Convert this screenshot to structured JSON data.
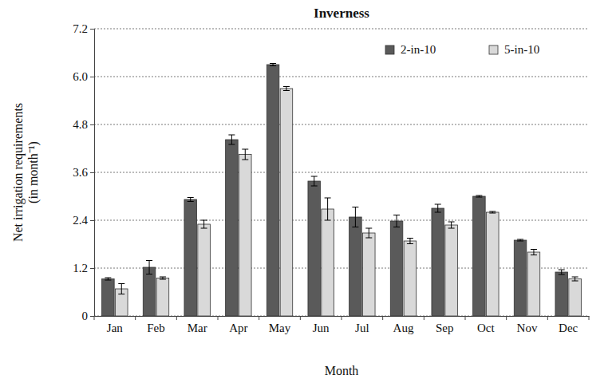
{
  "chart_data": {
    "type": "bar",
    "title": "Inverness",
    "xlabel": "Month",
    "ylabel": "Net irrigation requirements (in month⁻¹)",
    "categories": [
      "Jan",
      "Feb",
      "Mar",
      "Apr",
      "May",
      "Jun",
      "Jul",
      "Aug",
      "Sep",
      "Oct",
      "Nov",
      "Dec"
    ],
    "series": [
      {
        "name": "2-in-10",
        "color": "#5a5a5a",
        "values": [
          0.93,
          1.22,
          2.92,
          4.42,
          6.3,
          3.38,
          2.48,
          2.38,
          2.7,
          3.0,
          1.9,
          1.1
        ],
        "errors": [
          0.03,
          0.17,
          0.05,
          0.12,
          0.03,
          0.12,
          0.25,
          0.15,
          0.1,
          0.02,
          0.02,
          0.06
        ]
      },
      {
        "name": "5-in-10",
        "color": "#d9d9d9",
        "values": [
          0.68,
          0.95,
          2.3,
          4.05,
          5.7,
          2.68,
          2.08,
          1.88,
          2.28,
          2.6,
          1.6,
          0.93
        ],
        "errors": [
          0.13,
          0.03,
          0.1,
          0.13,
          0.05,
          0.28,
          0.12,
          0.07,
          0.08,
          0.02,
          0.07,
          0.05
        ]
      }
    ],
    "ylim": [
      0,
      7.2
    ],
    "yticks": [
      0,
      1.2,
      2.4,
      3.6,
      4.8,
      {
        "value": 6,
        "label": "6.0"
      },
      7.2
    ],
    "grid": true,
    "legend": "upper right"
  }
}
